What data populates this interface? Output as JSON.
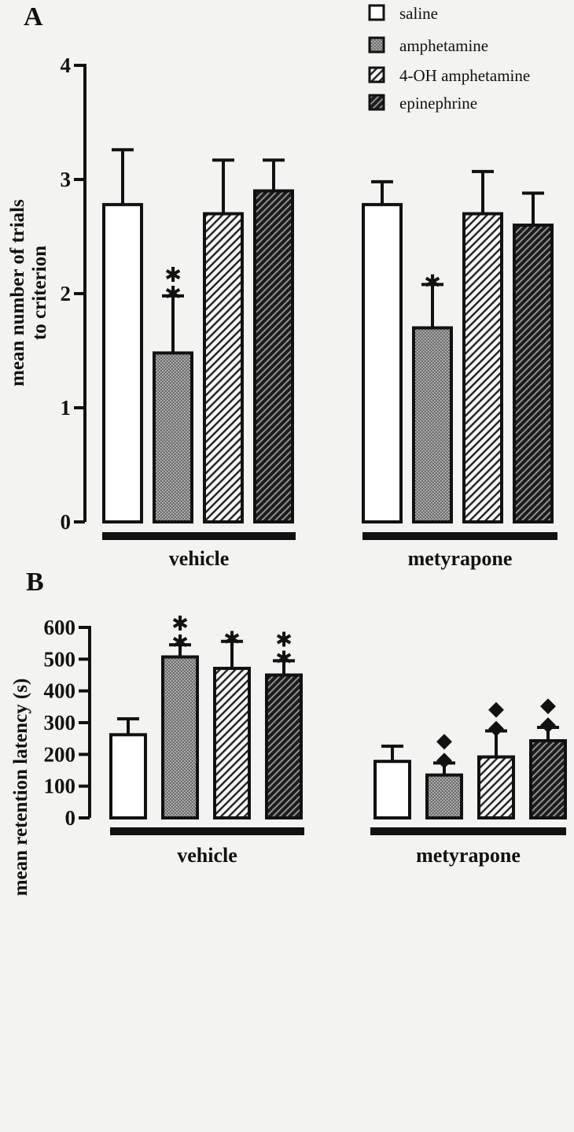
{
  "colors": {
    "ink": "#111111",
    "background": "#f3f3f1",
    "saline_fill": "#ffffff",
    "amphetamine_fill": "#777777"
  },
  "legend": [
    {
      "label": "saline",
      "pattern": "none"
    },
    {
      "label": "amphetamine",
      "pattern": "dots"
    },
    {
      "label": "4-OH amphetamine",
      "pattern": "light-diagonal"
    },
    {
      "label": "epinephrine",
      "pattern": "dark-diagonal"
    }
  ],
  "chart_data": [
    {
      "panel": "A",
      "type": "bar",
      "ylabel_line1": "mean number of trials",
      "ylabel_line2": "to criterion",
      "ylim": [
        0,
        4
      ],
      "yticks": [
        "0",
        "1",
        "2",
        "3",
        "4"
      ],
      "groups": [
        "vehicle",
        "metyrapone"
      ],
      "series": [
        {
          "name": "saline",
          "values": [
            2.78,
            2.78
          ],
          "errors": [
            0.48,
            0.2
          ],
          "sig": [
            "",
            ""
          ]
        },
        {
          "name": "amphetamine",
          "values": [
            1.48,
            1.7
          ],
          "errors": [
            0.5,
            0.38
          ],
          "sig": [
            "**",
            "*"
          ]
        },
        {
          "name": "4-OH amphetamine",
          "values": [
            2.7,
            2.7
          ],
          "errors": [
            0.47,
            0.37
          ],
          "sig": [
            "",
            ""
          ]
        },
        {
          "name": "epinephrine",
          "values": [
            2.9,
            2.6
          ],
          "errors": [
            0.27,
            0.28
          ],
          "sig": [
            "",
            ""
          ]
        }
      ]
    },
    {
      "panel": "B",
      "type": "bar",
      "ylabel_line1": "mean retention latency (s)",
      "ylabel_line2": "",
      "ylim": [
        0,
        600
      ],
      "yticks": [
        "0",
        "100",
        "200",
        "300",
        "400",
        "500",
        "600"
      ],
      "groups": [
        "vehicle",
        "metyrapone"
      ],
      "series": [
        {
          "name": "saline",
          "values": [
            262,
            178
          ],
          "errors": [
            50,
            48
          ],
          "sig": [
            "",
            ""
          ]
        },
        {
          "name": "amphetamine",
          "values": [
            507,
            135
          ],
          "errors": [
            38,
            38
          ],
          "sig": [
            "**",
            "◆◆"
          ]
        },
        {
          "name": "4-OH amphetamine",
          "values": [
            471,
            192
          ],
          "errors": [
            85,
            82
          ],
          "sig": [
            "*",
            "◆◆"
          ]
        },
        {
          "name": "epinephrine",
          "values": [
            450,
            243
          ],
          "errors": [
            45,
            42
          ],
          "sig": [
            "**",
            "◆◆"
          ]
        }
      ]
    }
  ]
}
